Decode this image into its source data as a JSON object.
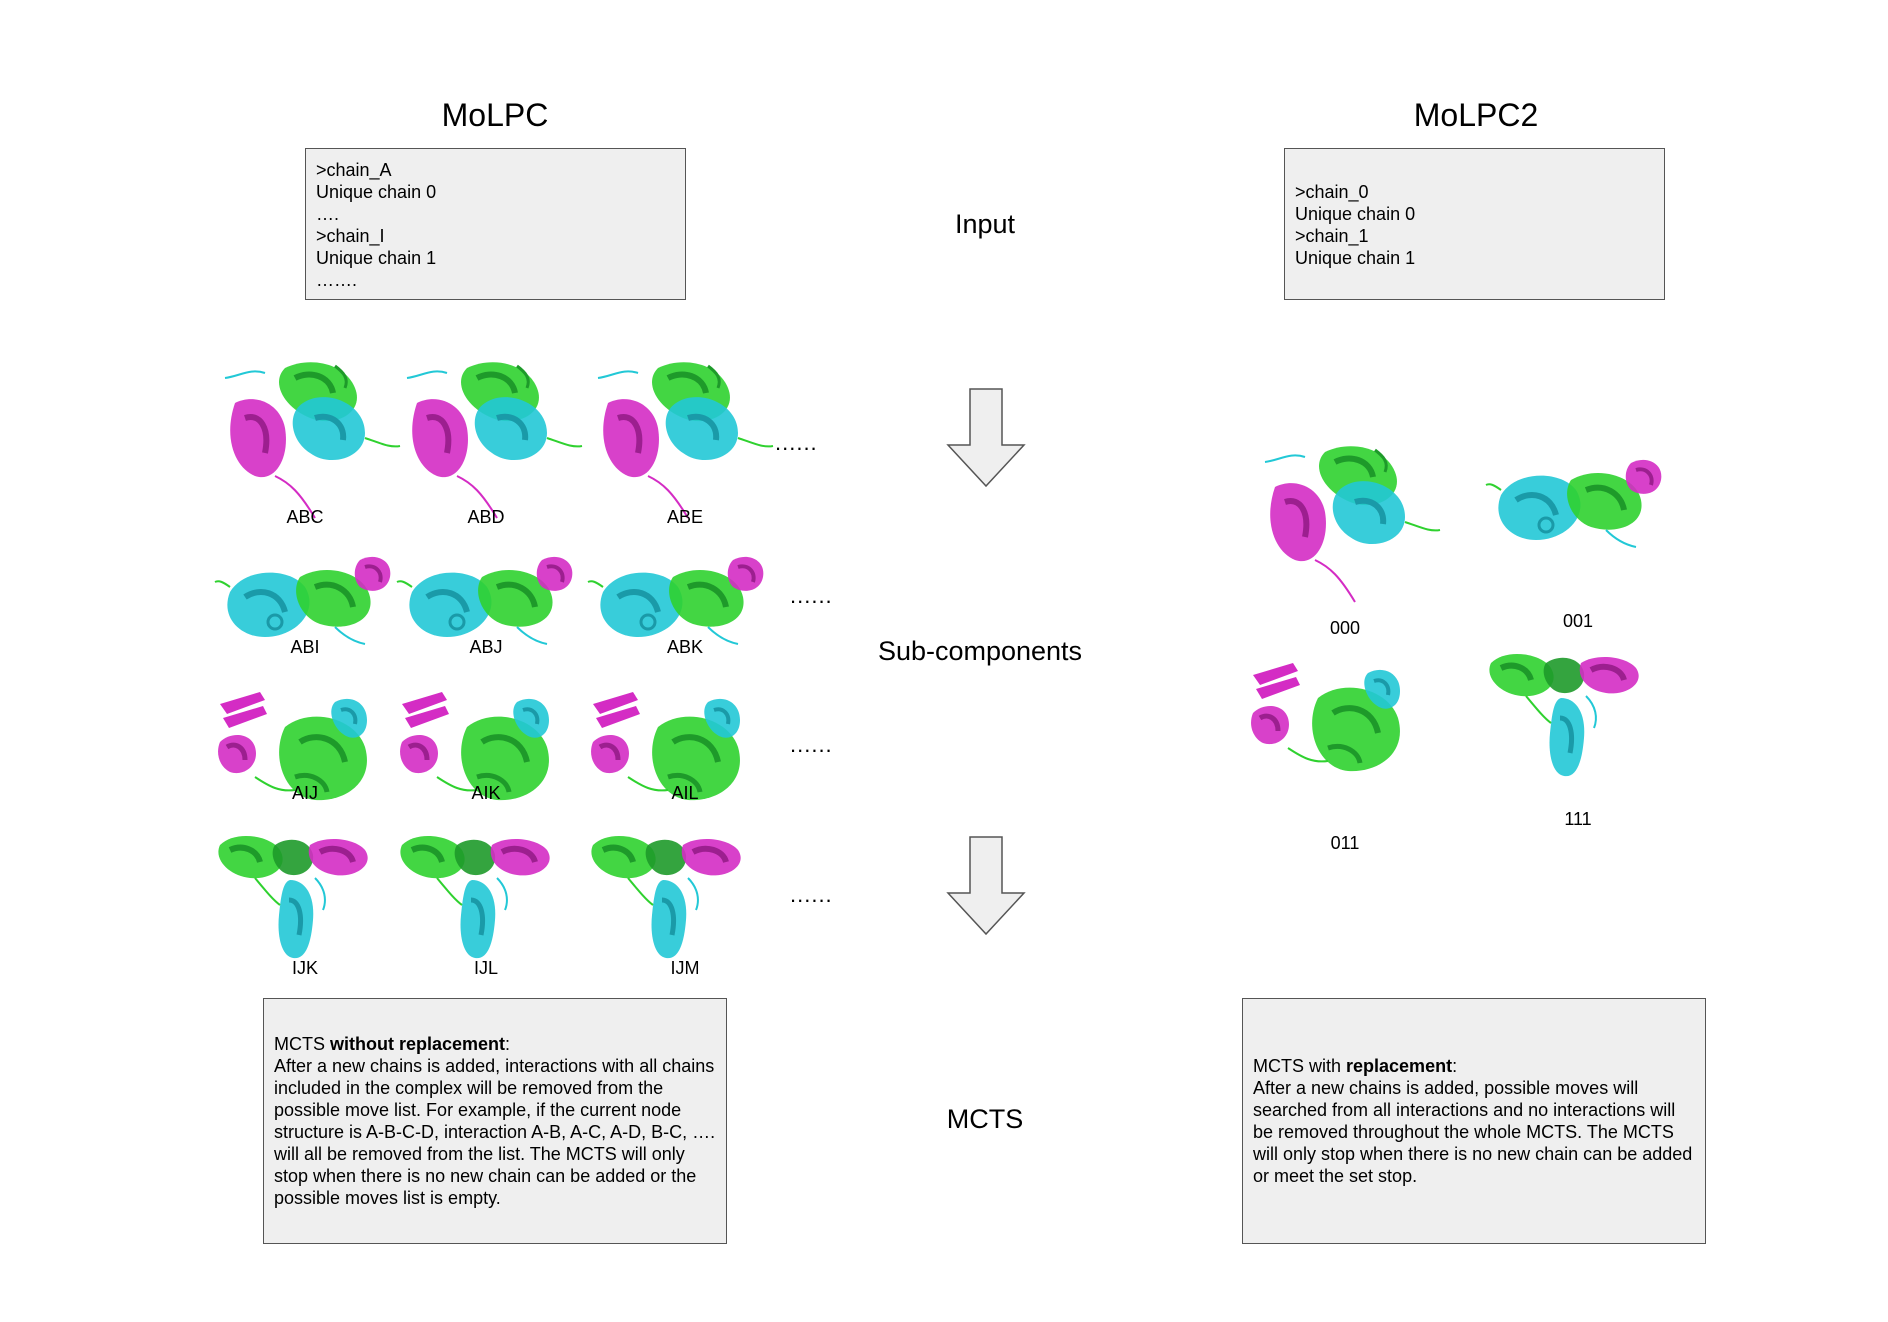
{
  "left": {
    "title": "MoLPC",
    "input_lines": [
      ">chain_A",
      "Unique chain 0",
      "….",
      ">chain_I",
      "Unique chain 1",
      "……."
    ],
    "rows": [
      {
        "labels": [
          "ABC",
          "ABD",
          "ABE"
        ],
        "dots": "......",
        "type": "A"
      },
      {
        "labels": [
          "ABI",
          "ABJ",
          "ABK"
        ],
        "dots": "......",
        "type": "B"
      },
      {
        "labels": [
          "AIJ",
          "AIK",
          "AIL"
        ],
        "dots": "......",
        "type": "C"
      },
      {
        "labels": [
          "IJK",
          "IJL",
          "IJM"
        ],
        "dots": "......",
        "type": "D"
      }
    ],
    "mcts": {
      "prefix": "MCTS ",
      "bold": "without replacement",
      "suffix": ":",
      "body": "After a new chains is added, interactions with all chains included in the complex will be removed from the possible move list. For example, if the current node structure is A-B-C-D, interaction A-B, A-C, A-D, B-C, …. will all be removed from the list. The MCTS will only stop when there is no new chain can be added or the possible moves list is empty."
    }
  },
  "right": {
    "title": "MoLPC2",
    "input_lines": [
      ">chain_0",
      "Unique chain 0",
      ">chain_1",
      "Unique chain 1"
    ],
    "subcomponents": [
      {
        "label": "000",
        "type": "A"
      },
      {
        "label": "001",
        "type": "B"
      },
      {
        "label": "011",
        "type": "C"
      },
      {
        "label": "111",
        "type": "D"
      }
    ],
    "mcts": {
      "prefix": "MCTS with ",
      "bold": "replacement",
      "suffix": ":",
      "body": "After a new chains is added, possible moves will searched from all interactions and no interactions will be removed throughout the whole MCTS. The MCTS will only stop when there is no new chain can be added or meet the set stop."
    }
  },
  "stages": {
    "input": "Input",
    "subcomponents": "Sub-components",
    "mcts": "MCTS"
  },
  "colors": {
    "green": "#2fd12f",
    "dark_green": "#1e9a2a",
    "cyan": "#22c8d6",
    "dark_cyan": "#1a9aa8",
    "magenta": "#d42cc4",
    "dark_magenta": "#9c1f8f",
    "box_fill": "#efefef",
    "arrow_fill": "#efefef"
  }
}
